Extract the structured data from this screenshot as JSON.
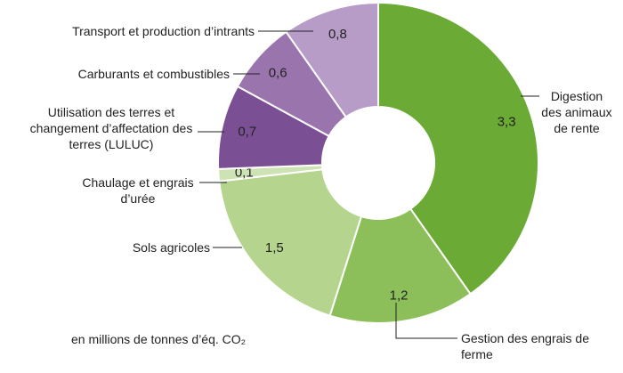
{
  "chart_data": {
    "type": "donut",
    "categories": [
      "Digestion des animaux de rente",
      "Gestion des engrais de ferme",
      "Sols agricoles",
      "Chaulage et engrais d’urée",
      "Utilisation des terres et changement d’affectation des terres (LULUC)",
      "Carburants et combustibles",
      "Transport et production d’intrants"
    ],
    "values": [
      3.3,
      1.2,
      1.5,
      0.1,
      0.7,
      0.6,
      0.8
    ],
    "value_labels": [
      "3,3",
      "1,2",
      "1,5",
      "0,1",
      "0,7",
      "0,6",
      "0,8"
    ],
    "colors": [
      "#6aaa35",
      "#8cbf5a",
      "#b5d58e",
      "#cde3b4",
      "#7b4f93",
      "#9a75ad",
      "#b89cc8"
    ],
    "note": "en millions de tonnes d’éq. CO₂"
  }
}
